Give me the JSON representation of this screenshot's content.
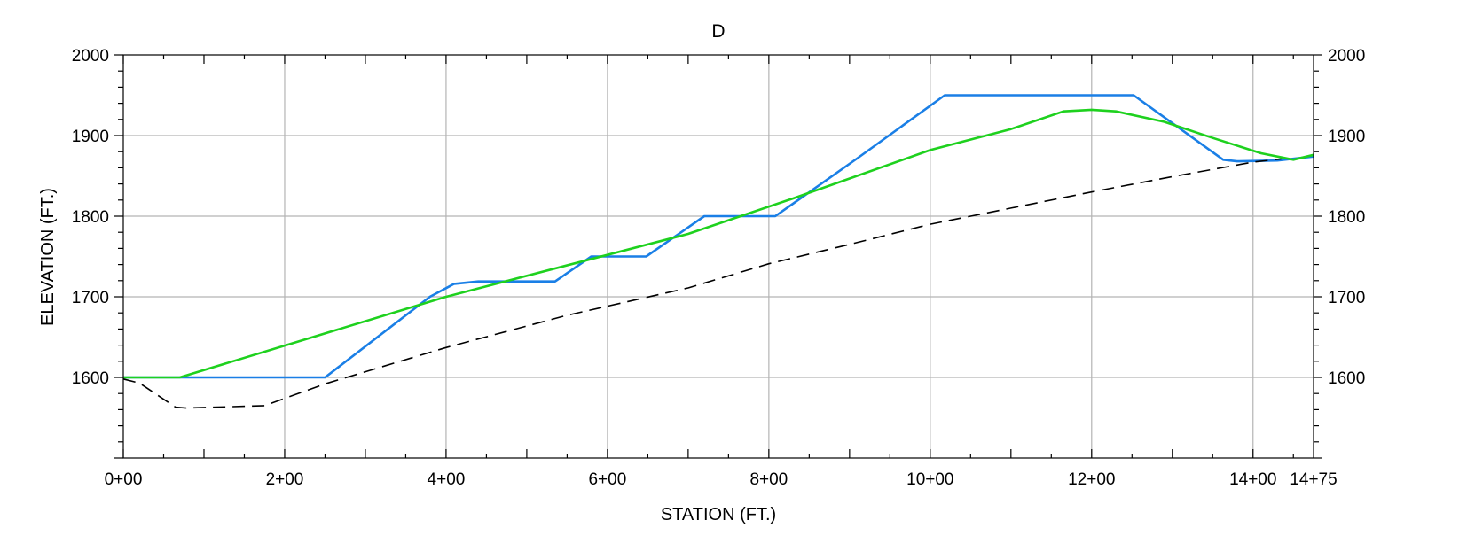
{
  "chart_data": {
    "type": "line",
    "title": "D",
    "xlabel": "STATION (FT.)",
    "ylabel": "ELEVATION (FT.)",
    "xlim": [
      0,
      1475
    ],
    "ylim": [
      1500,
      2000
    ],
    "grid": true,
    "x_ticks": [
      {
        "value": 0,
        "label": "0+00"
      },
      {
        "value": 200,
        "label": "2+00"
      },
      {
        "value": 400,
        "label": "4+00"
      },
      {
        "value": 600,
        "label": "6+00"
      },
      {
        "value": 800,
        "label": "8+00"
      },
      {
        "value": 1000,
        "label": "10+00"
      },
      {
        "value": 1200,
        "label": "12+00"
      },
      {
        "value": 1400,
        "label": "14+00"
      },
      {
        "value": 1475,
        "label": "14+75"
      }
    ],
    "y_ticks": [
      {
        "value": 1600,
        "label": "1600"
      },
      {
        "value": 1700,
        "label": "1700"
      },
      {
        "value": 1800,
        "label": "1800"
      },
      {
        "value": 1900,
        "label": "1900"
      },
      {
        "value": 2000,
        "label": "2000"
      }
    ],
    "series": [
      {
        "color": "#1a7fe6",
        "style": "solid",
        "points": [
          [
            0,
            1600
          ],
          [
            250,
            1600
          ],
          [
            380,
            1700
          ],
          [
            410,
            1716
          ],
          [
            440,
            1719
          ],
          [
            535,
            1719
          ],
          [
            580,
            1750
          ],
          [
            648,
            1750
          ],
          [
            720,
            1800
          ],
          [
            808,
            1800
          ],
          [
            910,
            1872
          ],
          [
            1018,
            1950
          ],
          [
            1252,
            1950
          ],
          [
            1363,
            1870
          ],
          [
            1380,
            1868
          ],
          [
            1430,
            1869
          ],
          [
            1475,
            1874
          ]
        ]
      },
      {
        "color": "#1ed11e",
        "style": "solid",
        "points": [
          [
            0,
            1600
          ],
          [
            70,
            1600
          ],
          [
            400,
            1700
          ],
          [
            700,
            1778
          ],
          [
            830,
            1822
          ],
          [
            1000,
            1882
          ],
          [
            1100,
            1908
          ],
          [
            1165,
            1930
          ],
          [
            1200,
            1932
          ],
          [
            1230,
            1930
          ],
          [
            1290,
            1917
          ],
          [
            1350,
            1897
          ],
          [
            1410,
            1878
          ],
          [
            1450,
            1870
          ],
          [
            1475,
            1876
          ]
        ]
      },
      {
        "color": "#000000",
        "style": "dashed",
        "points": [
          [
            0,
            1598
          ],
          [
            20,
            1593
          ],
          [
            65,
            1563
          ],
          [
            78,
            1562
          ],
          [
            175,
            1565
          ],
          [
            250,
            1592
          ],
          [
            400,
            1637
          ],
          [
            550,
            1677
          ],
          [
            700,
            1711
          ],
          [
            800,
            1741
          ],
          [
            900,
            1765
          ],
          [
            1000,
            1790
          ],
          [
            1100,
            1810
          ],
          [
            1200,
            1830
          ],
          [
            1300,
            1849
          ],
          [
            1400,
            1867
          ],
          [
            1435,
            1871
          ]
        ]
      }
    ]
  }
}
